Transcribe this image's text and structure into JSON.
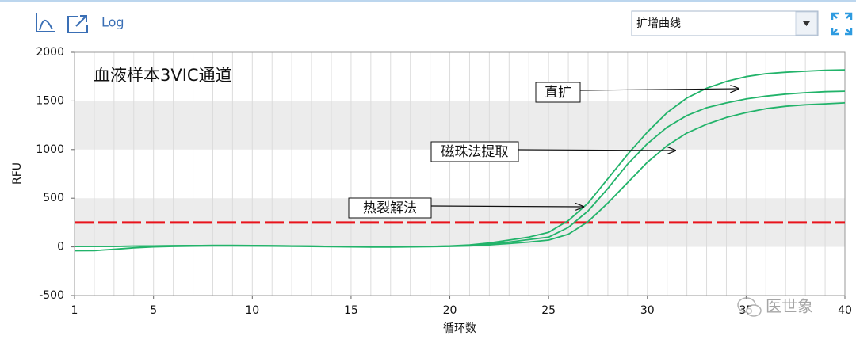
{
  "toolbar": {
    "log_label": "Log",
    "dropdown": "扩增曲线"
  },
  "watermark": "医世象",
  "chart_data": {
    "type": "line",
    "title": "血液样本3VIC通道",
    "x_label": "循环数",
    "y_label": "RFU",
    "x": [
      1,
      2,
      3,
      4,
      5,
      6,
      7,
      8,
      9,
      10,
      11,
      12,
      13,
      14,
      15,
      16,
      17,
      18,
      19,
      20,
      21,
      22,
      23,
      24,
      25,
      26,
      27,
      28,
      29,
      30,
      31,
      32,
      33,
      34,
      35,
      36,
      37,
      38,
      39,
      40
    ],
    "series": [
      {
        "color": "#22b36a",
        "values": [
          5,
          5,
          5,
          8,
          10,
          12,
          14,
          15,
          15,
          14,
          12,
          10,
          8,
          5,
          3,
          2,
          2,
          3,
          5,
          10,
          20,
          40,
          70,
          100,
          150,
          270,
          450,
          700,
          950,
          1180,
          1380,
          1530,
          1630,
          1700,
          1750,
          1780,
          1795,
          1805,
          1815,
          1820
        ]
      },
      {
        "color": "#22b36a",
        "values": [
          5,
          5,
          5,
          8,
          10,
          12,
          14,
          15,
          15,
          14,
          12,
          10,
          8,
          5,
          3,
          2,
          2,
          3,
          5,
          8,
          15,
          30,
          50,
          75,
          100,
          200,
          370,
          600,
          850,
          1060,
          1230,
          1350,
          1430,
          1480,
          1520,
          1550,
          1570,
          1585,
          1595,
          1600
        ]
      },
      {
        "color": "#22b36a",
        "values": [
          -40,
          -38,
          -25,
          -10,
          0,
          5,
          8,
          10,
          10,
          9,
          8,
          6,
          4,
          2,
          0,
          -2,
          -2,
          0,
          2,
          5,
          10,
          20,
          35,
          50,
          70,
          130,
          260,
          450,
          660,
          870,
          1040,
          1170,
          1260,
          1330,
          1380,
          1420,
          1445,
          1460,
          1470,
          1480
        ]
      }
    ],
    "xlim": [
      1,
      40
    ],
    "xticks": [
      1,
      5,
      10,
      15,
      20,
      25,
      30,
      35,
      40
    ],
    "ylim": [
      -500,
      2000
    ],
    "yticks": [
      -500,
      0,
      500,
      1000,
      1500,
      2000
    ],
    "grid": true,
    "threshold": {
      "value": 250,
      "color": "#e8141c"
    },
    "annotations": [
      {
        "text": "直扩"
      },
      {
        "text": "磁珠法提取"
      },
      {
        "text": "热裂解法"
      }
    ]
  }
}
